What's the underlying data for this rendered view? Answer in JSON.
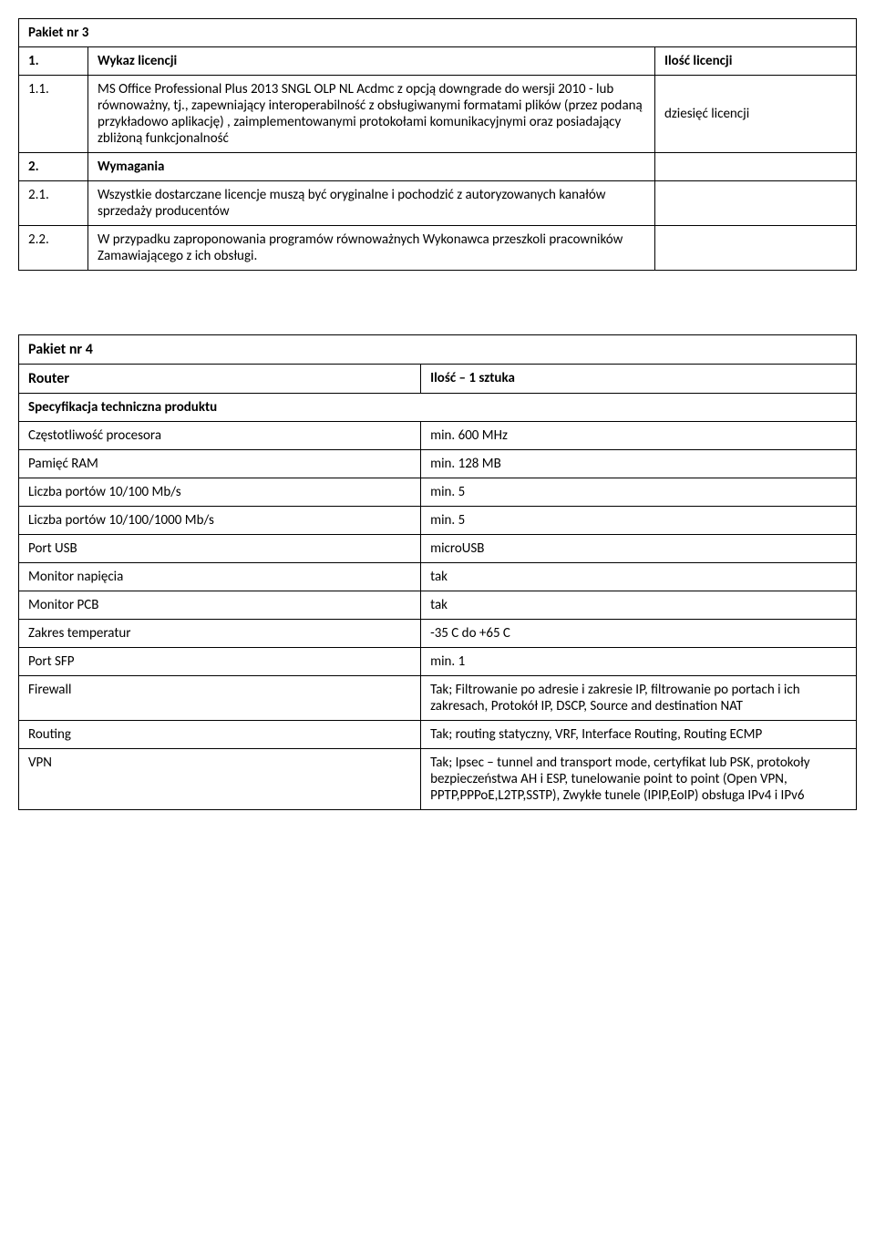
{
  "p3": {
    "title": "Pakiet nr 3",
    "r1n": "1.",
    "r1t": "Wykaz licencji",
    "r1r": "Ilość licencji",
    "r2n": "1.1.",
    "r2t": "MS Office Professional Plus 2013 SNGL OLP NL Acdmc z opcją downgrade do wersji 2010 - lub równoważny, tj., zapewniający interoperabilność z obsługiwanymi formatami plików (przez podaną przykładowo aplikację) , zaimplementowanymi protokołami komunikacyjnymi oraz posiadający zbliżoną  funkcjonalność",
    "r2r": "dziesięć licencji",
    "r3n": "2.",
    "r3t": "Wymagania",
    "r4n": "2.1.",
    "r4t": "Wszystkie dostarczane licencje muszą być oryginalne i pochodzić z autoryzowanych kanałów sprzedaży producentów",
    "r5n": "2.2.",
    "r5t": "W przypadku zaproponowania programów równoważnych Wykonawca przeszkoli pracowników Zamawiającego z ich obsługi."
  },
  "p4": {
    "title": "Pakiet nr 4",
    "h1": "Router",
    "h2": "Ilość – 1 sztuka",
    "sub": "Specyfikacja techniczna produktu",
    "rows": [
      {
        "l": "Częstotliwość procesora",
        "r": "min. 600 MHz"
      },
      {
        "l": "Pamięć RAM",
        "r": "min. 128 MB"
      },
      {
        "l": "Liczba portów 10/100 Mb/s",
        "r": "min. 5"
      },
      {
        "l": "Liczba portów 10/100/1000 Mb/s",
        "r": "min. 5"
      },
      {
        "l": "Port USB",
        "r": "microUSB"
      },
      {
        "l": "Monitor napięcia",
        "r": "tak"
      },
      {
        "l": "Monitor PCB",
        "r": "tak"
      },
      {
        "l": "Zakres temperatur",
        "r": "-35 C do +65 C"
      },
      {
        "l": "Port SFP",
        "r": "min. 1"
      },
      {
        "l": "Firewall",
        "r": "Tak; Filtrowanie po adresie i zakresie IP, filtrowanie po portach i ich zakresach, Protokół IP, DSCP, Source and destination NAT"
      },
      {
        "l": "Routing",
        "r": "Tak; routing statyczny, VRF, Interface Routing, Routing ECMP"
      },
      {
        "l": "VPN",
        "r": "Tak; Ipsec – tunnel and transport mode, certyfikat lub PSK, protokoły bezpieczeństwa AH i ESP, tunelowanie point to point (Open VPN, PPTP,PPPoE,L2TP,SSTP), Zwykłe tunele (IPIP,EoIP) obsługa IPv4 i IPv6"
      }
    ]
  }
}
